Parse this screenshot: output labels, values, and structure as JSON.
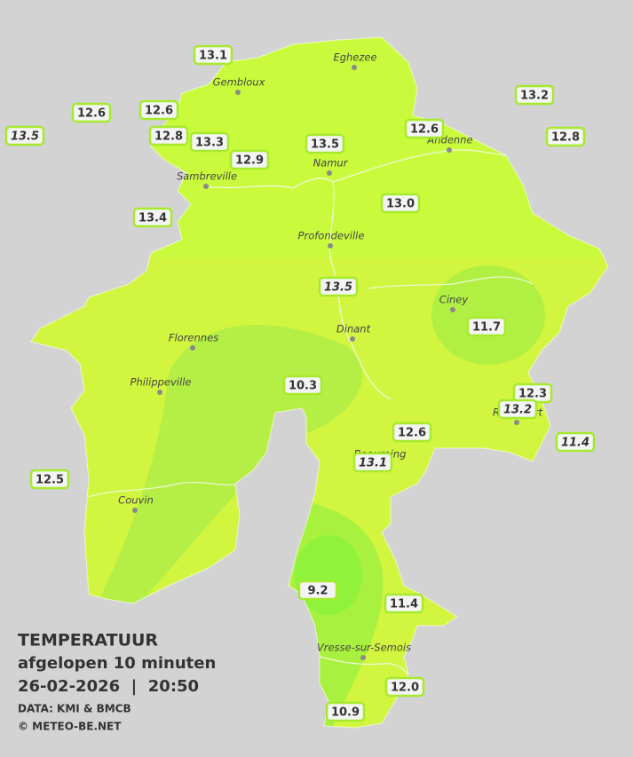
{
  "title": "TEMPERATUUR",
  "subtitle": "afgelopen 10 minuten",
  "datetime": "26-02-2026  |  20:50",
  "source": "DATA: KMI & BMCB",
  "credit": "© METEO-BE.NET",
  "cities": [
    "Eghezee",
    "Gembloux",
    "Andenne",
    "Namur",
    "Sambreville",
    "Profondeville",
    "Ciney",
    "Dinant",
    "Florennes",
    "Philippeville",
    "Rochefort",
    "Beauraing",
    "Couvin",
    "Vresse-sur-Semois"
  ],
  "stations": [
    {
      "value": "13.1",
      "italic": false
    },
    {
      "value": "12.6",
      "italic": false
    },
    {
      "value": "12.6",
      "italic": false
    },
    {
      "value": "13.5",
      "italic": true
    },
    {
      "value": "12.8",
      "italic": false
    },
    {
      "value": "13.3",
      "italic": false
    },
    {
      "value": "12.9",
      "italic": false
    },
    {
      "value": "13.5",
      "italic": false
    },
    {
      "value": "12.6",
      "italic": false
    },
    {
      "value": "13.2",
      "italic": false
    },
    {
      "value": "12.8",
      "italic": false
    },
    {
      "value": "13.4",
      "italic": false
    },
    {
      "value": "13.0",
      "italic": false
    },
    {
      "value": "13.5",
      "italic": true
    },
    {
      "value": "11.7",
      "italic": false
    },
    {
      "value": "10.3",
      "italic": false
    },
    {
      "value": "12.3",
      "italic": false
    },
    {
      "value": "13.2",
      "italic": true
    },
    {
      "value": "12.6",
      "italic": false
    },
    {
      "value": "11.4",
      "italic": true
    },
    {
      "value": "13.1",
      "italic": true
    },
    {
      "value": "12.5",
      "italic": false
    },
    {
      "value": "9.2",
      "italic": false
    },
    {
      "value": "11.4",
      "italic": false
    },
    {
      "value": "12.0",
      "italic": false
    },
    {
      "value": "10.9",
      "italic": false
    }
  ]
}
